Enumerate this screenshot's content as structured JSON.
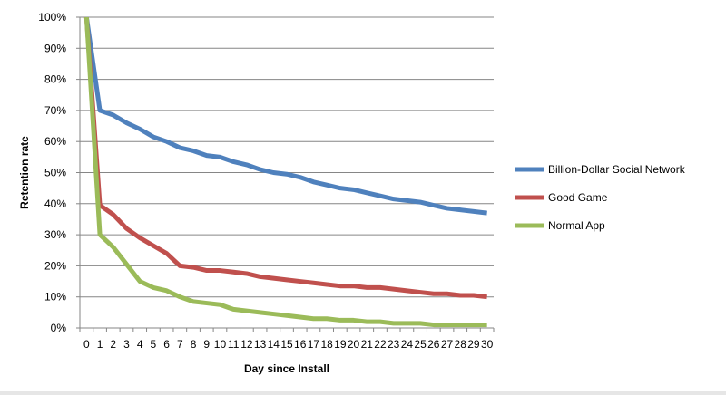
{
  "chart_data": {
    "type": "line",
    "title": "",
    "xlabel": "Day since Install",
    "ylabel": "Retention rate",
    "x": [
      0,
      1,
      2,
      3,
      4,
      5,
      6,
      7,
      8,
      9,
      10,
      11,
      12,
      13,
      14,
      15,
      16,
      17,
      18,
      19,
      20,
      21,
      22,
      23,
      24,
      25,
      26,
      27,
      28,
      29,
      30
    ],
    "xlim": [
      0,
      30
    ],
    "ylim": [
      0,
      100
    ],
    "y_ticks": [
      "0%",
      "10%",
      "20%",
      "30%",
      "40%",
      "50%",
      "60%",
      "70%",
      "80%",
      "90%",
      "100%"
    ],
    "grid": "horizontal",
    "legend_position": "right",
    "series": [
      {
        "name": "Billion-Dollar Social Network",
        "color": "#4F81BD",
        "values": [
          100,
          70,
          68.5,
          66,
          64,
          61.5,
          60,
          58,
          57,
          55.5,
          55,
          53.5,
          52.5,
          51,
          50,
          49.5,
          48.5,
          47,
          46,
          45,
          44.5,
          43.5,
          42.5,
          41.5,
          41,
          40.5,
          39.5,
          38.5,
          38,
          37.5,
          37
        ]
      },
      {
        "name": "Good Game",
        "color": "#C0504D",
        "values": [
          100,
          39.5,
          36.5,
          32,
          29,
          26.5,
          24,
          20,
          19.5,
          18.5,
          18.5,
          18,
          17.5,
          16.5,
          16,
          15.5,
          15,
          14.5,
          14,
          13.5,
          13.5,
          13,
          13,
          12.5,
          12,
          11.5,
          11,
          11,
          10.5,
          10.5,
          10
        ]
      },
      {
        "name": "Normal App",
        "color": "#9BBB59",
        "values": [
          100,
          30,
          26,
          20.5,
          15,
          13,
          12,
          10,
          8.5,
          8,
          7.5,
          6,
          5.5,
          5,
          4.5,
          4,
          3.5,
          3,
          3,
          2.5,
          2.5,
          2,
          2,
          1.5,
          1.5,
          1.5,
          1,
          1,
          1,
          1,
          1
        ]
      }
    ]
  }
}
